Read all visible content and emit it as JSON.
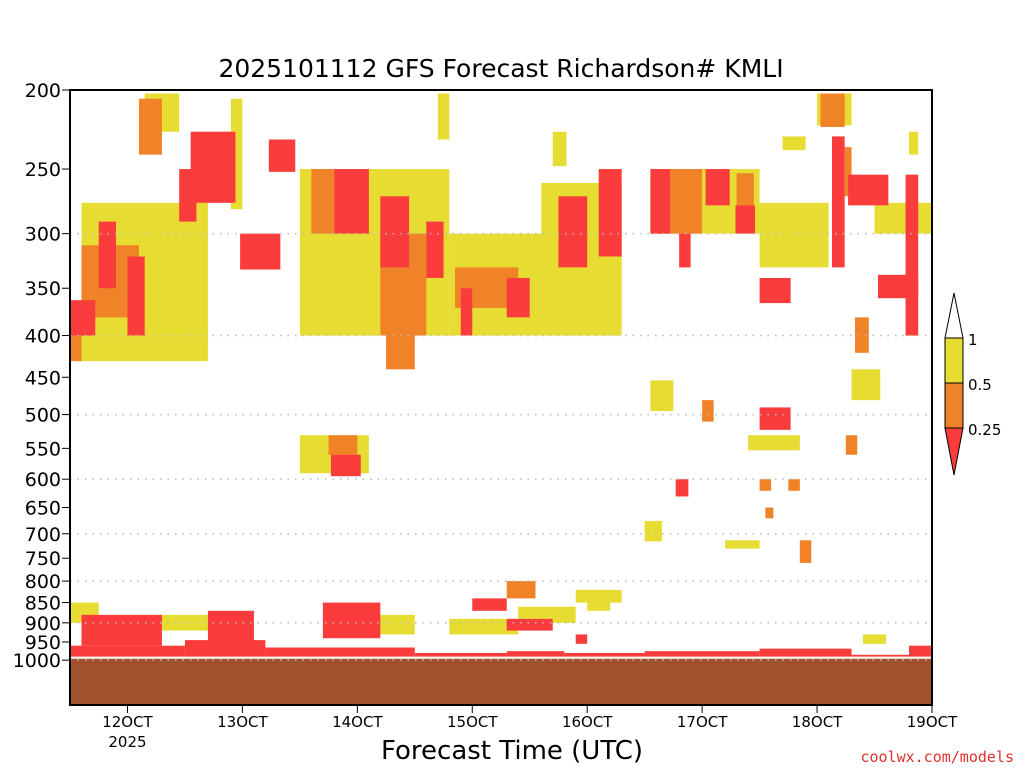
{
  "chart_data": {
    "type": "heatmap",
    "title": "2025101112 GFS Forecast Richardson# KMLI",
    "xlabel": "Forecast Time (UTC)",
    "ylabel": "",
    "credit": "coolwx.com/models",
    "xlim_days_oct": [
      11.5,
      19.0
    ],
    "ylim_hpa": [
      200,
      1135
    ],
    "y_scale": "log",
    "y_ticks": [
      200,
      250,
      300,
      350,
      400,
      450,
      500,
      550,
      600,
      650,
      700,
      750,
      800,
      850,
      900,
      950,
      1000
    ],
    "y_gridlines": [
      300,
      400,
      500,
      600,
      700,
      800,
      900,
      1000
    ],
    "x_ticks": [
      {
        "day": 12,
        "label": "12OCT",
        "sub": "2025"
      },
      {
        "day": 13,
        "label": "13OCT"
      },
      {
        "day": 14,
        "label": "14OCT"
      },
      {
        "day": 15,
        "label": "15OCT"
      },
      {
        "day": 16,
        "label": "16OCT"
      },
      {
        "day": 17,
        "label": "17OCT"
      },
      {
        "day": 18,
        "label": "18OCT"
      },
      {
        "day": 19,
        "label": "19OCT"
      }
    ],
    "legend": {
      "placement": "right",
      "levels": [
        "1",
        "0.5",
        "0.25"
      ],
      "colors": {
        "above_1": "#ffffff",
        "0.5-1": "#e6dc32",
        "0.25-0.5": "#f08228",
        "below_0.25": "#fa3c3c"
      }
    },
    "category_colors": [
      "#fa3c3c",
      "#f08228",
      "#e6dc32"
    ],
    "category_names": [
      "Ri < 0.25",
      "0.25 - 0.5",
      "0.5 - 1"
    ],
    "ground_color": "#a0522d",
    "ground_top_hpa": 993,
    "cell_format": [
      "t_start_day",
      "t_end_day",
      "p_top_hpa",
      "p_bottom_hpa",
      "category"
    ],
    "cells": [
      [
        11.6,
        12.7,
        275,
        430,
        2
      ],
      [
        12.15,
        12.45,
        202,
        225,
        2
      ],
      [
        13.5,
        14.8,
        250,
        400,
        2
      ],
      [
        14.8,
        15.6,
        300,
        400,
        2
      ],
      [
        15.6,
        16.3,
        260,
        400,
        2
      ],
      [
        16.6,
        17.5,
        250,
        300,
        2
      ],
      [
        17.5,
        18.1,
        275,
        330,
        2
      ],
      [
        18.5,
        19.0,
        275,
        300,
        2
      ],
      [
        17.7,
        17.9,
        228,
        237,
        2
      ],
      [
        18.0,
        18.3,
        202,
        221,
        2
      ],
      [
        15.7,
        15.82,
        225,
        248,
        2
      ],
      [
        18.8,
        18.88,
        225,
        240,
        2
      ],
      [
        13.5,
        14.1,
        530,
        590,
        2
      ],
      [
        17.4,
        17.85,
        530,
        553,
        2
      ],
      [
        16.5,
        16.65,
        675,
        715,
        2
      ],
      [
        17.2,
        17.5,
        713,
        730,
        2
      ],
      [
        16.55,
        16.75,
        454,
        495,
        2
      ],
      [
        18.3,
        18.55,
        440,
        480,
        2
      ],
      [
        11.5,
        11.75,
        850,
        900,
        2
      ],
      [
        12.3,
        12.7,
        880,
        920,
        2
      ],
      [
        13.9,
        14.5,
        880,
        930,
        2
      ],
      [
        14.8,
        15.4,
        890,
        930,
        2
      ],
      [
        15.4,
        15.9,
        860,
        900,
        2
      ],
      [
        15.9,
        16.3,
        820,
        850,
        2
      ],
      [
        18.4,
        18.6,
        930,
        955,
        2
      ],
      [
        16.0,
        16.2,
        840,
        870,
        2
      ],
      [
        12.9,
        13.0,
        205,
        280,
        2
      ],
      [
        14.7,
        14.8,
        202,
        230,
        2
      ],
      [
        11.6,
        12.1,
        310,
        380,
        1
      ],
      [
        12.1,
        12.3,
        205,
        240,
        1
      ],
      [
        13.6,
        14.1,
        250,
        300,
        1
      ],
      [
        14.2,
        14.6,
        300,
        400,
        1
      ],
      [
        14.85,
        15.4,
        330,
        370,
        1
      ],
      [
        16.55,
        17.0,
        250,
        300,
        1
      ],
      [
        17.3,
        17.45,
        253,
        280,
        1
      ],
      [
        18.03,
        18.24,
        202,
        222,
        1
      ],
      [
        18.24,
        18.3,
        235,
        270,
        1
      ],
      [
        13.75,
        14.0,
        530,
        560,
        1
      ],
      [
        15.3,
        15.55,
        800,
        840,
        1
      ],
      [
        17.85,
        17.95,
        713,
        760,
        1
      ],
      [
        18.25,
        18.35,
        530,
        560,
        1
      ],
      [
        17.5,
        17.6,
        600,
        620,
        1
      ],
      [
        17.0,
        17.1,
        480,
        510,
        1
      ],
      [
        17.55,
        17.62,
        650,
        670,
        1
      ],
      [
        17.75,
        17.85,
        600,
        620,
        1
      ],
      [
        14.25,
        14.5,
        390,
        440,
        1
      ],
      [
        18.33,
        18.45,
        380,
        420,
        1
      ],
      [
        11.5,
        11.6,
        400,
        430,
        1
      ],
      [
        11.5,
        11.72,
        362,
        400,
        0
      ],
      [
        11.75,
        11.9,
        290,
        350,
        0
      ],
      [
        12.0,
        12.15,
        320,
        400,
        0
      ],
      [
        12.45,
        12.6,
        250,
        290,
        0
      ],
      [
        12.55,
        12.94,
        225,
        275,
        0
      ],
      [
        12.98,
        13.33,
        300,
        332,
        0
      ],
      [
        13.23,
        13.46,
        230,
        252,
        0
      ],
      [
        13.8,
        14.1,
        250,
        300,
        0
      ],
      [
        14.2,
        14.45,
        270,
        330,
        0
      ],
      [
        14.6,
        14.75,
        290,
        340,
        0
      ],
      [
        14.9,
        15.0,
        350,
        400,
        0
      ],
      [
        15.3,
        15.5,
        340,
        380,
        0
      ],
      [
        15.75,
        16.0,
        270,
        330,
        0
      ],
      [
        16.1,
        16.3,
        250,
        320,
        0
      ],
      [
        16.55,
        16.72,
        250,
        300,
        0
      ],
      [
        16.8,
        16.9,
        300,
        330,
        0
      ],
      [
        17.03,
        17.24,
        250,
        277,
        0
      ],
      [
        17.29,
        17.46,
        277,
        300,
        0
      ],
      [
        17.5,
        17.77,
        340,
        365,
        0
      ],
      [
        18.13,
        18.24,
        228,
        330,
        0
      ],
      [
        18.27,
        18.62,
        254,
        277,
        0
      ],
      [
        18.53,
        18.88,
        337,
        360,
        0
      ],
      [
        18.77,
        18.88,
        254,
        400,
        0
      ],
      [
        13.77,
        14.03,
        560,
        595,
        0
      ],
      [
        17.5,
        17.77,
        490,
        522,
        0
      ],
      [
        16.77,
        16.88,
        600,
        630,
        0
      ],
      [
        11.6,
        12.3,
        880,
        960,
        0
      ],
      [
        12.7,
        13.1,
        870,
        950,
        0
      ],
      [
        13.7,
        14.2,
        850,
        940,
        0
      ],
      [
        15.0,
        15.3,
        840,
        870,
        0
      ],
      [
        15.3,
        15.7,
        890,
        920,
        0
      ],
      [
        15.9,
        16.0,
        930,
        955,
        0
      ],
      [
        11.5,
        12.5,
        960,
        993,
        0
      ],
      [
        12.5,
        13.2,
        945,
        993,
        0
      ],
      [
        13.2,
        14.5,
        965,
        993,
        0
      ],
      [
        14.5,
        15.3,
        980,
        993,
        0
      ],
      [
        15.3,
        15.8,
        975,
        993,
        0
      ],
      [
        15.8,
        16.5,
        980,
        993,
        0
      ],
      [
        16.5,
        17.5,
        975,
        993,
        0
      ],
      [
        17.5,
        18.3,
        968,
        993,
        0
      ],
      [
        18.3,
        18.8,
        985,
        993,
        0
      ],
      [
        18.8,
        19.0,
        960,
        993,
        0
      ]
    ]
  }
}
